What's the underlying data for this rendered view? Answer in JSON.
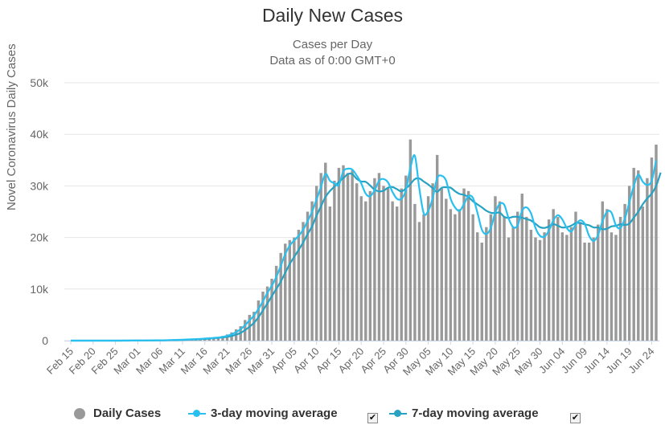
{
  "chart_data": {
    "type": "bar",
    "title": "Daily New Cases",
    "subtitle_lines": [
      "Cases per Day",
      "Data as of 0:00 GMT+0"
    ],
    "ylabel": "Novel Coronavirus Daily Cases",
    "xlabel": "",
    "ylim": [
      0,
      50000
    ],
    "y_ticks": [
      0,
      10000,
      20000,
      30000,
      40000,
      50000
    ],
    "y_tick_labels": [
      "0",
      "10k",
      "20k",
      "30k",
      "40k",
      "50k"
    ],
    "x_tick_labels": [
      "Feb 15",
      "Feb 20",
      "Feb 25",
      "Mar 01",
      "Mar 06",
      "Mar 11",
      "Mar 16",
      "Mar 21",
      "Mar 26",
      "Mar 31",
      "Apr 05",
      "Apr 10",
      "Apr 15",
      "Apr 20",
      "Apr 25",
      "Apr 30",
      "May 05",
      "May 10",
      "May 15",
      "May 20",
      "May 25",
      "May 30",
      "Jun 04",
      "Jun 09",
      "Jun 14",
      "Jun 19",
      "Jun 24"
    ],
    "tick_interval_days": 5,
    "first_date": "Feb 15",
    "grid": true,
    "legend_position": "bottom",
    "series": [
      {
        "name": "Daily Cases",
        "type": "bar",
        "color": "#999999",
        "values": [
          0,
          0,
          0,
          0,
          0,
          0,
          0,
          0,
          0,
          0,
          10,
          10,
          10,
          20,
          20,
          30,
          40,
          50,
          60,
          70,
          80,
          100,
          120,
          150,
          180,
          220,
          260,
          300,
          350,
          400,
          460,
          530,
          600,
          700,
          900,
          1200,
          1600,
          2200,
          2800,
          4000,
          5000,
          5600,
          7800,
          9500,
          10500,
          12000,
          14500,
          17000,
          18800,
          19500,
          20000,
          21500,
          23000,
          25000,
          27000,
          30000,
          32500,
          34500,
          26000,
          31000,
          33500,
          34000,
          32500,
          33000,
          30500,
          28000,
          27000,
          29000,
          31500,
          32500,
          30000,
          29500,
          27000,
          26000,
          29500,
          32000,
          39000,
          26500,
          23000,
          24500,
          28000,
          30500,
          36000,
          29500,
          27500,
          25500,
          24500,
          25500,
          29500,
          29000,
          24500,
          21000,
          19000,
          22000,
          24500,
          28000,
          27000,
          24000,
          20000,
          22000,
          25000,
          28500,
          24000,
          21500,
          20000,
          19500,
          21000,
          23500,
          25500,
          24000,
          21000,
          20500,
          22000,
          25000,
          23000,
          19000,
          19000,
          20000,
          22500,
          27000,
          25500,
          21000,
          20500,
          24000,
          26500,
          30000,
          33500,
          33000,
          26000,
          31500,
          35500,
          38000
        ]
      },
      {
        "name": "3-day moving average",
        "type": "line",
        "color": "#29c0ef",
        "checkbox": "✔",
        "values": [
          0,
          0,
          0,
          0,
          0,
          0,
          0,
          0,
          0,
          0,
          3,
          7,
          10,
          13,
          17,
          23,
          30,
          40,
          50,
          60,
          70,
          83,
          100,
          123,
          150,
          183,
          220,
          260,
          303,
          350,
          403,
          463,
          530,
          610,
          733,
          933,
          1233,
          1667,
          2200,
          3000,
          3933,
          4867,
          6133,
          7633,
          9267,
          10667,
          12333,
          14500,
          16767,
          18433,
          19433,
          20333,
          21500,
          23167,
          25000,
          27333,
          29833,
          32333,
          31000,
          30500,
          30167,
          32833,
          33333,
          33167,
          32000,
          30500,
          28500,
          28000,
          29167,
          31000,
          31333,
          30667,
          28833,
          27500,
          27500,
          29167,
          33500,
          35833,
          29500,
          24667,
          25167,
          27667,
          31500,
          31967,
          31000,
          27500,
          25833,
          25167,
          26500,
          28000,
          27667,
          24833,
          21500,
          20667,
          21833,
          24833,
          26500,
          26333,
          23667,
          22000,
          22333,
          25167,
          25833,
          24667,
          21833,
          20333,
          20167,
          21333,
          23333,
          24333,
          23500,
          21833,
          21167,
          22500,
          23333,
          22667,
          20333,
          19333,
          20500,
          23167,
          25000,
          24833,
          22333,
          21833,
          23667,
          26833,
          30000,
          32167,
          30833,
          30167,
          31000,
          35000
        ]
      },
      {
        "name": "7-day moving average",
        "type": "line",
        "color": "#27a2c2",
        "checkbox": "✔",
        "values": [
          0,
          0,
          0,
          0,
          0,
          0,
          0,
          0,
          0,
          0,
          1,
          3,
          4,
          6,
          9,
          13,
          18,
          25,
          33,
          41,
          51,
          62,
          77,
          94,
          114,
          138,
          167,
          201,
          240,
          284,
          334,
          393,
          460,
          535,
          620,
          729,
          900,
          1157,
          1500,
          2029,
          2700,
          3443,
          4529,
          5874,
          7214,
          8643,
          10014,
          11457,
          13171,
          14857,
          16243,
          17600,
          19029,
          20657,
          22171,
          24214,
          26071,
          27857,
          29000,
          29857,
          30786,
          31500,
          32286,
          32286,
          31357,
          30857,
          30786,
          30071,
          29286,
          28929,
          29071,
          29643,
          29786,
          29357,
          28929,
          29500,
          30357,
          31329,
          31429,
          30843,
          30271,
          29557,
          28843,
          29643,
          29729,
          29643,
          28967,
          28443,
          28271,
          27829,
          27029,
          26414,
          25843,
          25186,
          24800,
          24729,
          24833,
          24000,
          23800,
          24000,
          24000,
          23829,
          23571,
          23286,
          22643,
          22000,
          21857,
          22143,
          22571,
          22286,
          21929,
          22000,
          22286,
          22786,
          22800,
          22557,
          22371,
          21943,
          21929,
          21600,
          21700,
          22143,
          22257,
          22571,
          22429,
          22714,
          23843,
          25000,
          26429,
          27571,
          28500,
          30000,
          32571
        ]
      }
    ]
  }
}
